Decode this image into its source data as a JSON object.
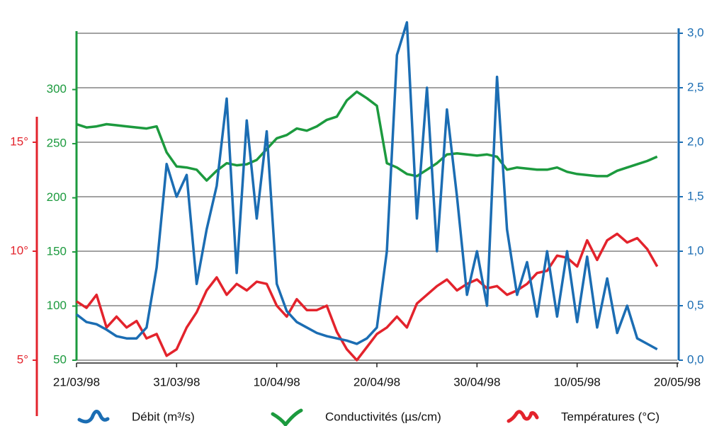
{
  "chart_data": {
    "type": "line",
    "x": [
      "21/03/98",
      "22/03/98",
      "23/03/98",
      "24/03/98",
      "25/03/98",
      "26/03/98",
      "27/03/98",
      "28/03/98",
      "29/03/98",
      "30/03/98",
      "31/03/98",
      "01/04/98",
      "02/04/98",
      "03/04/98",
      "04/04/98",
      "05/04/98",
      "06/04/98",
      "07/04/98",
      "08/04/98",
      "09/04/98",
      "10/04/98",
      "11/04/98",
      "12/04/98",
      "13/04/98",
      "14/04/98",
      "15/04/98",
      "16/04/98",
      "17/04/98",
      "18/04/98",
      "19/04/98",
      "20/04/98",
      "21/04/98",
      "22/04/98",
      "23/04/98",
      "24/04/98",
      "25/04/98",
      "26/04/98",
      "27/04/98",
      "28/04/98",
      "29/04/98",
      "30/04/98",
      "01/05/98",
      "02/05/98",
      "03/05/98",
      "04/05/98",
      "05/05/98",
      "06/05/98",
      "07/05/98",
      "08/05/98",
      "09/05/98",
      "10/05/98",
      "11/05/98",
      "12/05/98",
      "13/05/98",
      "14/05/98",
      "15/05/98",
      "16/05/98",
      "17/05/98",
      "18/05/98",
      "19/05/98",
      "20/05/98"
    ],
    "xticks": [
      "21/03/98",
      "31/03/98",
      "10/04/98",
      "20/04/98",
      "30/04/98",
      "10/05/98",
      "20/05/98"
    ],
    "ylim": [
      50,
      352
    ],
    "yticks": [
      50,
      100,
      150,
      200,
      250,
      300
    ],
    "y2lim": [
      0,
      3
    ],
    "y2ticks": [
      {
        "value": 0,
        "label": "0,0"
      },
      {
        "value": 0.5,
        "label": "0,5"
      },
      {
        "value": 1,
        "label": "1,0"
      },
      {
        "value": 1.5,
        "label": "1,5"
      },
      {
        "value": 2,
        "label": "2,0"
      },
      {
        "value": 2.5,
        "label": "2,5"
      },
      {
        "value": 3,
        "label": "3,0"
      }
    ],
    "y3lim": [
      5,
      20
    ],
    "y3ticks": [
      {
        "value": 5,
        "label": "5°"
      },
      {
        "value": 10,
        "label": "10°"
      },
      {
        "value": 15,
        "label": "15°"
      }
    ],
    "grid": true,
    "series": [
      {
        "name": "Débit (m³/s)",
        "color": "#1b6db3",
        "axis": "y2",
        "values": [
          0.42,
          0.35,
          0.33,
          0.28,
          0.22,
          0.2,
          0.2,
          0.3,
          0.85,
          1.8,
          1.5,
          1.7,
          0.7,
          1.2,
          1.6,
          2.4,
          0.8,
          2.2,
          1.3,
          2.1,
          0.7,
          0.45,
          0.35,
          0.3,
          0.25,
          0.22,
          0.2,
          0.18,
          0.15,
          0.2,
          0.3,
          1.0,
          2.8,
          3.1,
          1.3,
          2.5,
          1.0,
          2.3,
          1.5,
          0.6,
          1.0,
          0.5,
          2.6,
          1.2,
          0.6,
          0.9,
          0.4,
          1.0,
          0.4,
          1.0,
          0.35,
          0.95,
          0.3,
          0.75,
          0.25,
          0.5,
          0.2,
          0.15,
          0.1,
          null,
          null
        ]
      },
      {
        "name": "Conductivités (µs/cm)",
        "color": "#1c9a3e",
        "values": [
          268,
          265,
          266,
          268,
          267,
          266,
          265,
          264,
          266,
          242,
          229,
          228,
          226,
          216,
          225,
          232,
          230,
          231,
          235,
          245,
          255,
          258,
          264,
          262,
          266,
          272,
          275,
          290,
          298,
          292,
          285,
          232,
          228,
          222,
          220,
          226,
          232,
          240,
          241,
          240,
          239,
          240,
          238,
          226,
          228,
          227,
          226,
          226,
          228,
          224,
          222,
          221,
          220,
          220,
          225,
          228,
          231,
          234,
          238,
          null,
          null
        ]
      },
      {
        "name": "Températures (°C)",
        "color": "#e3232c",
        "axis": "y3",
        "values": [
          7.7,
          7.4,
          8.0,
          6.5,
          7.0,
          6.5,
          6.8,
          6.0,
          6.2,
          5.2,
          5.5,
          6.5,
          7.2,
          8.2,
          8.8,
          8.0,
          8.5,
          8.2,
          8.6,
          8.5,
          7.5,
          7.0,
          7.8,
          7.3,
          7.3,
          7.5,
          6.3,
          5.5,
          5.0,
          5.6,
          6.2,
          6.5,
          7.0,
          6.5,
          7.6,
          8.0,
          8.4,
          8.7,
          8.2,
          8.5,
          8.7,
          8.3,
          8.4,
          8.0,
          8.2,
          8.5,
          9.0,
          9.1,
          9.8,
          9.7,
          9.3,
          10.5,
          9.6,
          10.5,
          10.8,
          10.4,
          10.6,
          10.1,
          9.3,
          null,
          null
        ]
      }
    ]
  }
}
